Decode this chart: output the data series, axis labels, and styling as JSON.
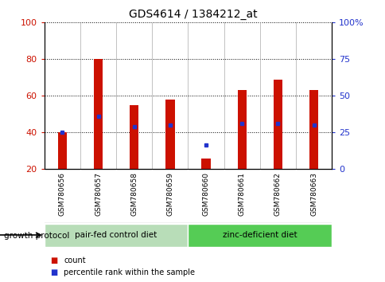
{
  "title": "GDS4614 / 1384212_at",
  "samples": [
    "GSM780656",
    "GSM780657",
    "GSM780658",
    "GSM780659",
    "GSM780660",
    "GSM780661",
    "GSM780662",
    "GSM780663"
  ],
  "red_bar_values": [
    40,
    80,
    55,
    58,
    26,
    63,
    69,
    63
  ],
  "blue_dot_values": [
    40,
    49,
    43,
    44,
    33,
    45,
    45,
    44
  ],
  "bar_color": "#cc1100",
  "dot_color": "#2233cc",
  "bar_bottom": 20,
  "ylim_left": [
    20,
    100
  ],
  "yticks_left": [
    20,
    40,
    60,
    80,
    100
  ],
  "yticks_right": [
    0,
    25,
    50,
    75,
    100
  ],
  "ytick_labels_right": [
    "0",
    "25",
    "50",
    "75",
    "100%"
  ],
  "group1_label": "pair-fed control diet",
  "group2_label": "zinc-deficient diet",
  "group_protocol_label": "growth protocol",
  "group1_color": "#b8ddb8",
  "group2_color": "#55cc55",
  "legend_count_label": "count",
  "legend_pct_label": "percentile rank within the sample",
  "bg_color": "#ffffff",
  "tick_area_color": "#c8c8c8",
  "title_fontsize": 10,
  "axis_fontsize": 8,
  "bar_width": 0.25
}
